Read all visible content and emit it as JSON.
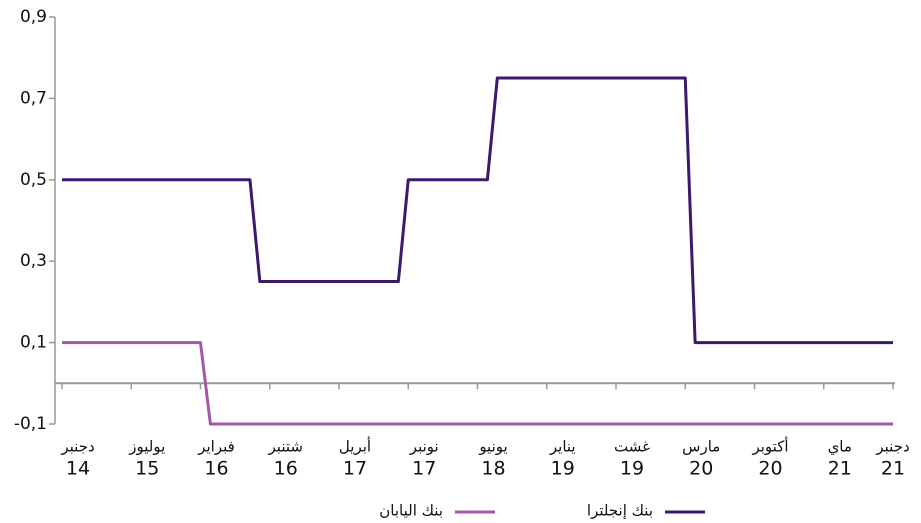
{
  "chart_data": {
    "type": "line",
    "xlim": [
      "2014-12",
      "2021-12"
    ],
    "xticks": [
      {
        "value": "2014-12",
        "label": [
          "دجنبر",
          "14"
        ]
      },
      {
        "value": "2015-07",
        "label": [
          "يوليوز",
          "15"
        ]
      },
      {
        "value": "2016-02",
        "label": [
          "فبراير",
          "16"
        ]
      },
      {
        "value": "2016-09",
        "label": [
          "شتنبر",
          "16"
        ]
      },
      {
        "value": "2017-04",
        "label": [
          "أبريل",
          "17"
        ]
      },
      {
        "value": "2017-11",
        "label": [
          "نونبر",
          "17"
        ]
      },
      {
        "value": "2018-06",
        "label": [
          "يونيو",
          "18"
        ]
      },
      {
        "value": "2019-01",
        "label": [
          "يناير",
          "19"
        ]
      },
      {
        "value": "2019-08",
        "label": [
          "غشت",
          "19"
        ]
      },
      {
        "value": "2020-03",
        "label": [
          "مارس",
          "20"
        ]
      },
      {
        "value": "2020-10",
        "label": [
          "أكتوبر",
          "20"
        ]
      },
      {
        "value": "2021-05",
        "label": [
          "ماي",
          "21"
        ]
      },
      {
        "value": "2021-12",
        "label": [
          "دجنبر",
          "21"
        ]
      }
    ],
    "ylim": [
      -0.1,
      0.9
    ],
    "yticks": [
      {
        "value": -0.1,
        "label": "-0,1"
      },
      {
        "value": 0.1,
        "label": "0,1"
      },
      {
        "value": 0.3,
        "label": "0,3"
      },
      {
        "value": 0.5,
        "label": "0,5"
      },
      {
        "value": 0.7,
        "label": "0,7"
      },
      {
        "value": 0.9,
        "label": "0,9"
      }
    ],
    "series": [
      {
        "name": "بنك إنجلترا",
        "color": "#3b1a6b",
        "x": [
          "2014-12",
          "2016-07",
          "2016-08",
          "2017-10",
          "2017-11",
          "2018-07",
          "2018-08",
          "2020-03",
          "2020-04",
          "2021-12"
        ],
        "values": [
          0.5,
          0.5,
          0.25,
          0.25,
          0.5,
          0.5,
          0.75,
          0.75,
          0.1,
          0.1
        ]
      },
      {
        "name": "بنك اليابان",
        "color": "#a557a7",
        "x": [
          "2014-12",
          "2016-02",
          "2016-03",
          "2021-12"
        ],
        "values": [
          0.1,
          0.1,
          -0.1,
          -0.1
        ]
      }
    ]
  }
}
